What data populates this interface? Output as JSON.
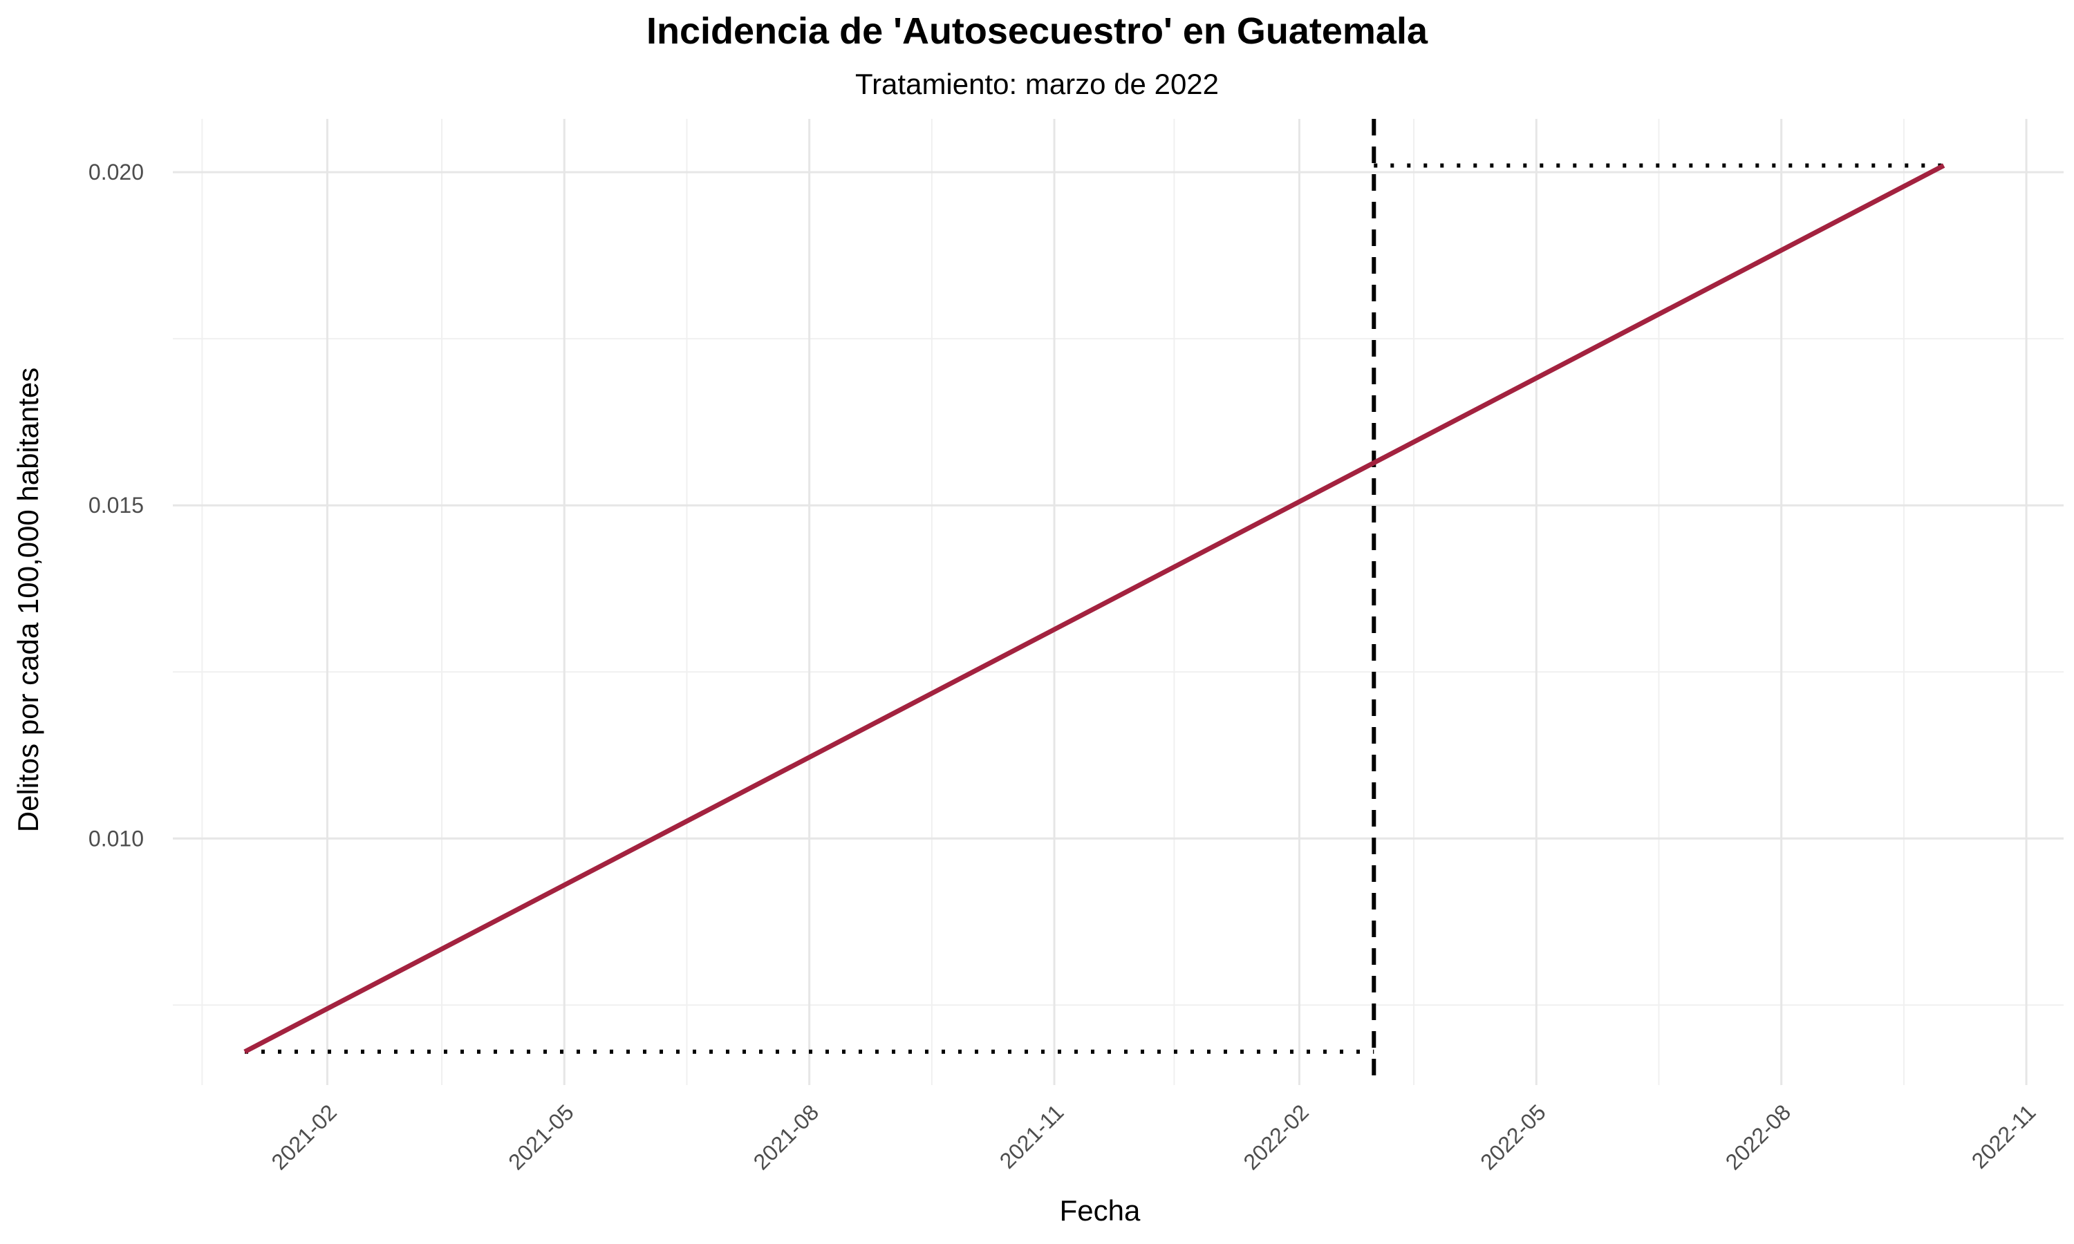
{
  "chart_data": {
    "type": "line",
    "title": "Incidencia de 'Autosecuestro' en Guatemala",
    "subtitle": "Tratamiento: marzo de 2022",
    "xlabel": "Fecha",
    "ylabel": "Delitos por cada 100,000 habitantes",
    "x_range": [
      "2020-12-05",
      "2022-11-15"
    ],
    "ylim": [
      0.0063,
      0.0208
    ],
    "x_ticks": [
      "2021-02-01",
      "2021-05-01",
      "2021-08-01",
      "2021-11-01",
      "2022-02-01",
      "2022-05-01",
      "2022-08-01",
      "2022-11-01"
    ],
    "x_tick_labels": [
      "2021-02",
      "2021-05",
      "2021-08",
      "2021-11",
      "2022-02",
      "2022-05",
      "2022-08",
      "2022-11"
    ],
    "x_minor_ticks": [
      "2020-12-16",
      "2021-03-16",
      "2021-06-16",
      "2021-09-16",
      "2021-12-16",
      "2022-03-16",
      "2022-06-16",
      "2022-09-16"
    ],
    "y_ticks": [
      0.01,
      0.015,
      0.02
    ],
    "y_tick_labels": [
      "0.010",
      "0.015",
      "0.020"
    ],
    "y_minor_ticks": [
      0.0075,
      0.0125,
      0.0175
    ],
    "grid": true,
    "series": [
      {
        "color": "#A3223F",
        "x": [
          "2021-01-01",
          "2022-10-01"
        ],
        "values": [
          0.0068,
          0.0201
        ]
      }
    ],
    "treatment_date": "2022-03-01",
    "treatment_line_color": "#000000",
    "reference_segments": [
      {
        "x": [
          "2021-01-01",
          "2022-03-01"
        ],
        "y": 0.0068,
        "style": "dotted"
      },
      {
        "x": [
          "2022-03-01",
          "2022-10-01"
        ],
        "y": 0.0201,
        "style": "dotted"
      }
    ]
  }
}
